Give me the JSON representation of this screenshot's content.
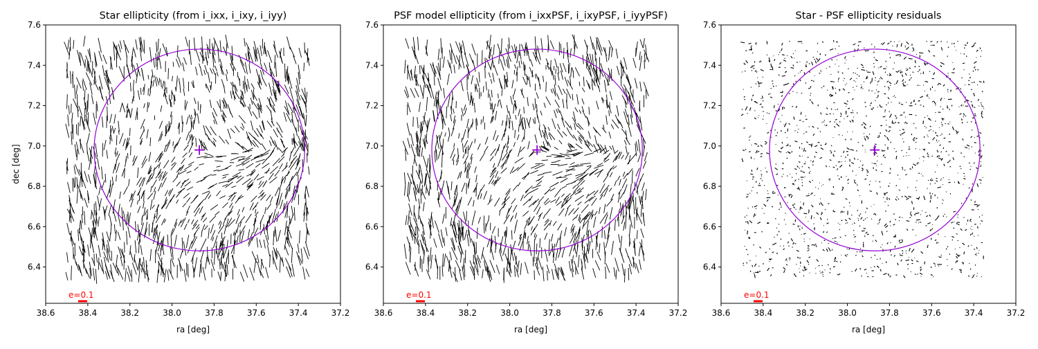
{
  "chart_data": [
    {
      "type": "whisker",
      "title": "Star ellipticity (from i_ixx, i_ixy, i_iyy)",
      "xlabel": "ra [deg]",
      "ylabel": "dec [deg]",
      "xlim": [
        38.6,
        37.2
      ],
      "ylim": [
        6.22,
        7.6
      ],
      "xticks": [
        "38.6",
        "38.4",
        "38.2",
        "38.0",
        "37.8",
        "37.6",
        "37.4",
        "37.2"
      ],
      "yticks": [
        "6.4",
        "6.6",
        "6.8",
        "7.0",
        "7.2",
        "7.4",
        "7.6"
      ],
      "scale_key": {
        "label": "e=0.1",
        "color": "#ff0000"
      },
      "circle": {
        "ra": 37.87,
        "dec": 6.98,
        "radius_deg": 0.5,
        "color": "#9400d3"
      },
      "center_marker": {
        "ra": 37.87,
        "dec": 6.98,
        "color": "#9400d3"
      },
      "field": {
        "ra_range": [
          37.35,
          38.5
        ],
        "dec_range": [
          6.35,
          7.52
        ]
      },
      "whisker_magnitude": "star"
    },
    {
      "type": "whisker",
      "title": "PSF model ellipticity (from i_ixxPSF, i_ixyPSF, i_iyyPSF)",
      "xlabel": "ra [deg]",
      "ylabel": "",
      "xlim": [
        38.6,
        37.2
      ],
      "ylim": [
        6.22,
        7.6
      ],
      "xticks": [
        "38.6",
        "38.4",
        "38.2",
        "38.0",
        "37.8",
        "37.6",
        "37.4",
        "37.2"
      ],
      "yticks": [
        "6.4",
        "6.6",
        "6.8",
        "7.0",
        "7.2",
        "7.4",
        "7.6"
      ],
      "scale_key": {
        "label": "e=0.1",
        "color": "#ff0000"
      },
      "circle": {
        "ra": 37.87,
        "dec": 6.98,
        "radius_deg": 0.5,
        "color": "#9400d3"
      },
      "center_marker": {
        "ra": 37.87,
        "dec": 6.98,
        "color": "#9400d3"
      },
      "field": {
        "ra_range": [
          37.35,
          38.5
        ],
        "dec_range": [
          6.35,
          7.52
        ]
      },
      "whisker_magnitude": "psf"
    },
    {
      "type": "whisker",
      "title": "Star - PSF ellipticity residuals",
      "xlabel": "ra [deg]",
      "ylabel": "",
      "xlim": [
        38.6,
        37.2
      ],
      "ylim": [
        6.22,
        7.6
      ],
      "xticks": [
        "38.6",
        "38.4",
        "38.2",
        "38.0",
        "37.8",
        "37.6",
        "37.4",
        "37.2"
      ],
      "yticks": [
        "6.4",
        "6.6",
        "6.8",
        "7.0",
        "7.2",
        "7.4",
        "7.6"
      ],
      "scale_key": {
        "label": "e=0.1",
        "color": "#ff0000"
      },
      "circle": {
        "ra": 37.87,
        "dec": 6.98,
        "radius_deg": 0.5,
        "color": "#9400d3"
      },
      "center_marker": {
        "ra": 37.87,
        "dec": 6.98,
        "color": "#9400d3"
      },
      "field": {
        "ra_range": [
          37.35,
          38.5
        ],
        "dec_range": [
          6.35,
          7.52
        ]
      },
      "whisker_magnitude": "residual"
    }
  ]
}
